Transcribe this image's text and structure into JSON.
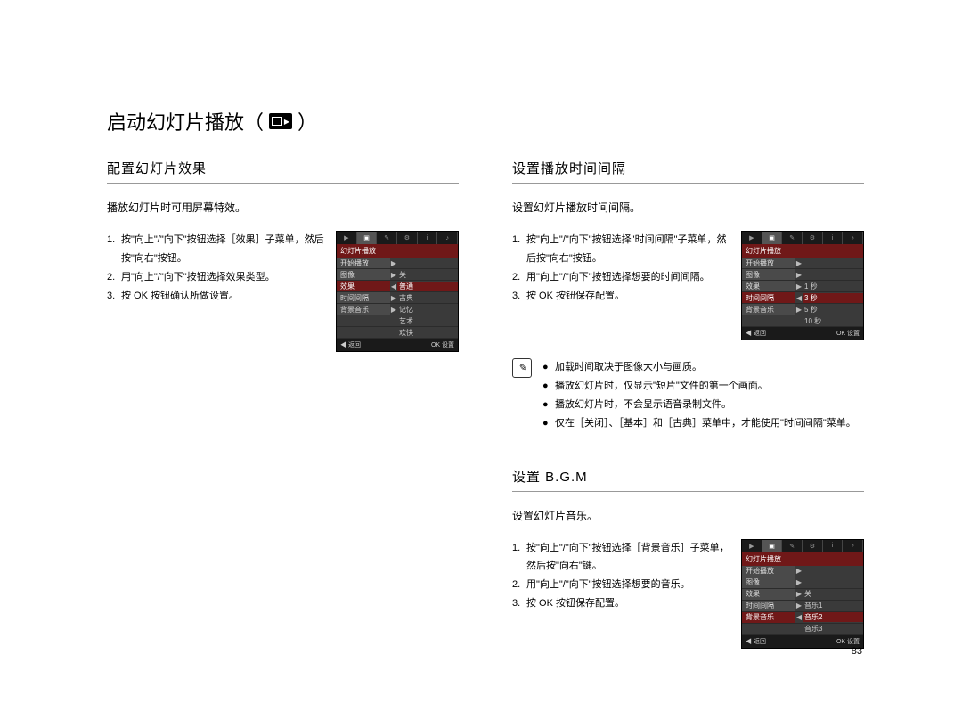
{
  "pageTitle": {
    "prefix": "启动幻灯片播放（",
    "suffix": "）"
  },
  "left": {
    "section1": {
      "title": "配置幻灯片效果",
      "lead": "播放幻灯片时可用屏幕特效。",
      "steps": [
        "按\"向上\"/\"向下\"按钮选择［效果］子菜单，然后按\"向右\"按钮。",
        "用\"向上\"/\"向下\"按钮选择效果类型。",
        "按 OK 按钮确认所做设置。"
      ],
      "lcd": {
        "title": "幻灯片播放",
        "rows": [
          {
            "left": "开始播放",
            "right": "",
            "arrow": "▶"
          },
          {
            "left": "图像",
            "right": "关",
            "arrow": "▶"
          },
          {
            "left": "效果",
            "right": "普通",
            "arrow": "◀",
            "sel": true,
            "hl": true
          },
          {
            "left": "时间间隔",
            "right": "古典",
            "arrow": "▶"
          },
          {
            "left": "背景音乐",
            "right": "记忆",
            "arrow": "▶"
          },
          {
            "left": "",
            "right": "艺术",
            "arrow": "",
            "opt": true
          },
          {
            "left": "",
            "right": "欢快",
            "arrow": "",
            "opt": true
          }
        ],
        "footL": "◀ 返回",
        "footR": "OK 设置"
      }
    }
  },
  "right": {
    "section1": {
      "title": "设置播放时间间隔",
      "lead": "设置幻灯片播放时间间隔。",
      "steps": [
        "按\"向上\"/\"向下\"按钮选择\"时间间隔\"子菜单，然后按\"向右\"按钮。",
        "用\"向上\"/\"向下\"按钮选择想要的时间间隔。",
        "按 OK 按钮保存配置。"
      ],
      "lcd": {
        "title": "幻灯片播放",
        "rows": [
          {
            "left": "开始播放",
            "right": "",
            "arrow": "▶"
          },
          {
            "left": "图像",
            "right": "",
            "arrow": "▶"
          },
          {
            "left": "效果",
            "right": "1 秒",
            "arrow": "▶"
          },
          {
            "left": "时间间隔",
            "right": "3 秒",
            "arrow": "◀",
            "sel": true,
            "hl": true
          },
          {
            "left": "背景音乐",
            "right": "5 秒",
            "arrow": "▶"
          },
          {
            "left": "",
            "right": "10 秒",
            "arrow": "",
            "opt": true
          }
        ],
        "footL": "◀ 返回",
        "footR": "OK 设置"
      },
      "notes": [
        "加载时间取决于图像大小与画质。",
        "播放幻灯片时，仅显示\"短片\"文件的第一个画面。",
        "播放幻灯片时，不会显示语音录制文件。",
        "仅在［关闭］、［基本］和［古典］菜单中，才能使用\"时间间隔\"菜单。"
      ]
    },
    "section2": {
      "title": "设置 B.G.M",
      "lead": "设置幻灯片音乐。",
      "steps": [
        "按\"向上\"/\"向下\"按钮选择［背景音乐］子菜单，然后按\"向右\"键。",
        "用\"向上\"/\"向下\"按钮选择想要的音乐。",
        "按 OK 按钮保存配置。"
      ],
      "lcd": {
        "title": "幻灯片播放",
        "rows": [
          {
            "left": "开始播放",
            "right": "",
            "arrow": "▶"
          },
          {
            "left": "图像",
            "right": "",
            "arrow": "▶"
          },
          {
            "left": "效果",
            "right": "关",
            "arrow": "▶"
          },
          {
            "left": "时间间隔",
            "right": "音乐1",
            "arrow": "▶"
          },
          {
            "left": "背景音乐",
            "right": "音乐2",
            "arrow": "◀",
            "sel": true,
            "hl": true
          },
          {
            "left": "",
            "right": "音乐3",
            "arrow": "",
            "opt": true
          }
        ],
        "footL": "◀ 返回",
        "footR": "OK 设置"
      }
    }
  },
  "pageNumber": "83"
}
